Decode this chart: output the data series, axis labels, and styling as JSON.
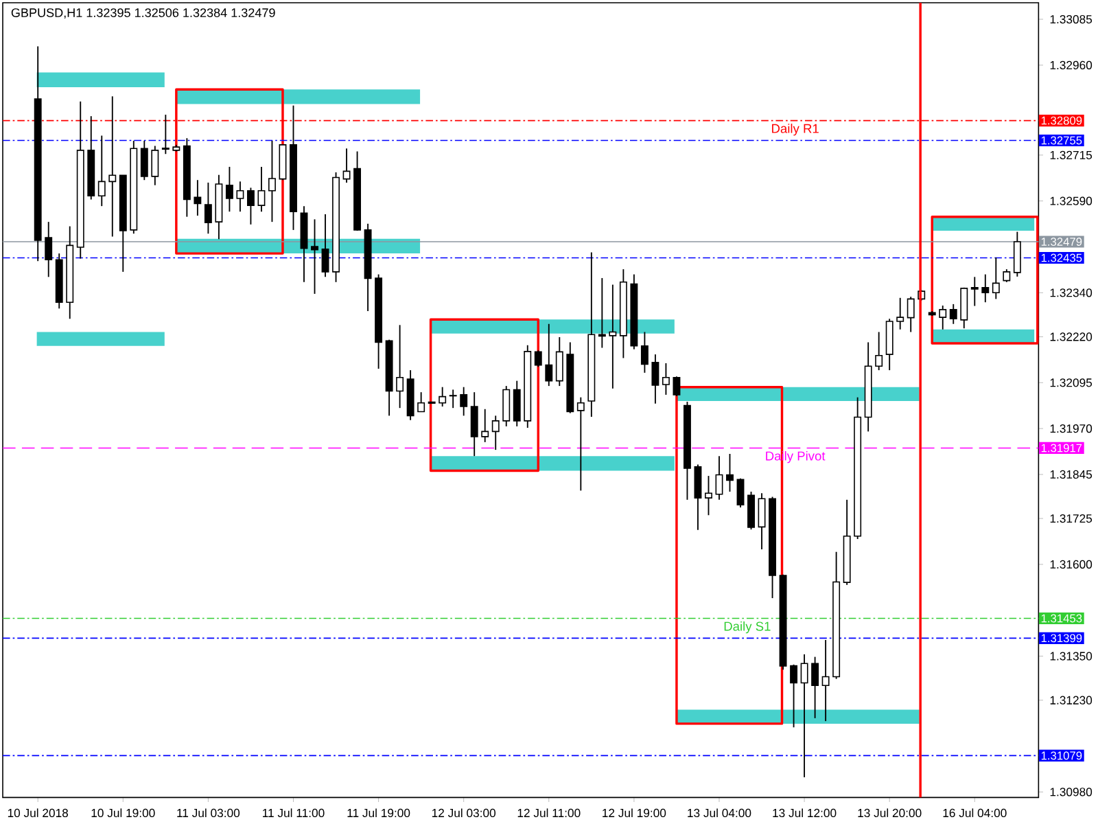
{
  "chart_data": {
    "type": "candlestick",
    "title": "GBPUSD,H1 1.32395 1.32506 1.32384 1.32479",
    "categories": [
      "10 Jul 2018",
      null,
      null,
      null,
      null,
      null,
      null,
      null,
      "10 Jul 19:00",
      null,
      null,
      null,
      null,
      null,
      null,
      null,
      "11 Jul 03:00",
      null,
      null,
      null,
      null,
      null,
      null,
      null,
      "11 Jul 11:00",
      null,
      null,
      null,
      null,
      null,
      null,
      null,
      "11 Jul 19:00",
      null,
      null,
      null,
      null,
      null,
      null,
      null,
      "12 Jul 03:00",
      null,
      null,
      null,
      null,
      null,
      null,
      null,
      "12 Jul 11:00",
      null,
      null,
      null,
      null,
      null,
      null,
      null,
      "12 Jul 19:00",
      null,
      null,
      null,
      null,
      null,
      null,
      null,
      "13 Jul 04:00",
      null,
      null,
      null,
      null,
      null,
      null,
      null,
      "13 Jul 12:00",
      null,
      null,
      null,
      null,
      null,
      null,
      null,
      "13 Jul 20:00",
      null,
      null,
      null,
      null,
      null,
      null,
      null,
      "16 Jul 04:00",
      null,
      null,
      null,
      null
    ],
    "ohlc": [
      [
        1.32868,
        1.33011,
        1.32426,
        1.32483
      ],
      [
        1.3249,
        1.32533,
        1.32383,
        1.3243
      ],
      [
        1.3243,
        1.32447,
        1.32297,
        1.32314
      ],
      [
        1.32314,
        1.32521,
        1.32269,
        1.32469
      ],
      [
        1.32464,
        1.32861,
        1.32433,
        1.32728
      ],
      [
        1.32728,
        1.32821,
        1.32594,
        1.32604
      ],
      [
        1.32604,
        1.32768,
        1.32576,
        1.32643
      ],
      [
        1.32643,
        1.32875,
        1.32493,
        1.3266
      ],
      [
        1.3266,
        1.3266,
        1.32397,
        1.32509
      ],
      [
        1.32511,
        1.32754,
        1.32501,
        1.32733
      ],
      [
        1.32733,
        1.32754,
        1.32647,
        1.32657
      ],
      [
        1.32657,
        1.3274,
        1.32633,
        1.32728
      ],
      [
        1.32731,
        1.32825,
        1.32718,
        1.32734
      ],
      [
        1.32728,
        1.32743,
        1.32725,
        1.32737
      ],
      [
        1.3274,
        1.32761,
        1.32547,
        1.32594
      ],
      [
        1.326,
        1.32647,
        1.3255,
        1.32583
      ],
      [
        1.3258,
        1.3264,
        1.32501,
        1.32531
      ],
      [
        1.32533,
        1.32661,
        1.32486,
        1.32636
      ],
      [
        1.32633,
        1.32683,
        1.32561,
        1.32597
      ],
      [
        1.32597,
        1.32643,
        1.32561,
        1.32618
      ],
      [
        1.32618,
        1.32626,
        1.32526,
        1.32578
      ],
      [
        1.32578,
        1.32683,
        1.32561,
        1.32618
      ],
      [
        1.32618,
        1.32754,
        1.32533,
        1.32651
      ],
      [
        1.3265,
        1.32743,
        1.32647,
        1.32743
      ],
      [
        1.32743,
        1.3285,
        1.32511,
        1.32561
      ],
      [
        1.32557,
        1.32576,
        1.32369,
        1.32461
      ],
      [
        1.32466,
        1.3254,
        1.32337,
        1.32457
      ],
      [
        1.32459,
        1.32554,
        1.32383,
        1.32397
      ],
      [
        1.32397,
        1.32668,
        1.32369,
        1.32654
      ],
      [
        1.3265,
        1.32733,
        1.3264,
        1.32671
      ],
      [
        1.32678,
        1.32725,
        1.32509,
        1.32511
      ],
      [
        1.32511,
        1.32528,
        1.3229,
        1.32379
      ],
      [
        1.3238,
        1.3239,
        1.32133,
        1.32205
      ],
      [
        1.32209,
        1.32212,
        1.32005,
        1.32072
      ],
      [
        1.32072,
        1.32252,
        1.32026,
        1.32109
      ],
      [
        1.32105,
        1.32129,
        1.31993,
        1.32005
      ],
      [
        1.32016,
        1.32069,
        1.32015,
        1.3204
      ],
      [
        1.32039,
        1.32043,
        1.32038,
        1.32042
      ],
      [
        1.3204,
        1.32083,
        1.3203,
        1.32057
      ],
      [
        1.3206,
        1.32076,
        1.32026,
        1.32059
      ],
      [
        1.32062,
        1.32083,
        1.32005,
        1.3203
      ],
      [
        1.3203,
        1.32069,
        1.31895,
        1.31948
      ],
      [
        1.31948,
        1.32023,
        1.31933,
        1.31962
      ],
      [
        1.31962,
        1.32005,
        1.31912,
        1.31991
      ],
      [
        1.31991,
        1.32086,
        1.31976,
        1.32076
      ],
      [
        1.32076,
        1.321,
        1.31976,
        1.31991
      ],
      [
        1.31991,
        1.32197,
        1.31972,
        1.3218
      ],
      [
        1.32179,
        1.32183,
        1.32138,
        1.32143
      ],
      [
        1.32143,
        1.32255,
        1.32086,
        1.321
      ],
      [
        1.321,
        1.32219,
        1.32086,
        1.32179
      ],
      [
        1.32172,
        1.32205,
        1.32012,
        1.32016
      ],
      [
        1.32019,
        1.32055,
        1.31801,
        1.3204
      ],
      [
        1.32045,
        1.3245,
        1.32002,
        1.32226
      ],
      [
        1.32226,
        1.3238,
        1.3219,
        1.32222
      ],
      [
        1.32223,
        1.32362,
        1.32079,
        1.32233
      ],
      [
        1.32223,
        1.32404,
        1.32162,
        1.32369
      ],
      [
        1.32364,
        1.3239,
        1.32186,
        1.32195
      ],
      [
        1.32195,
        1.32233,
        1.32122,
        1.32145
      ],
      [
        1.3215,
        1.32172,
        1.32038,
        1.32088
      ],
      [
        1.3209,
        1.32148,
        1.32062,
        1.32109
      ],
      [
        1.32109,
        1.32112,
        1.32058,
        1.32062
      ],
      [
        1.32033,
        1.32043,
        1.31776,
        1.31862
      ],
      [
        1.31866,
        1.31872,
        1.31694,
        1.31781
      ],
      [
        1.31781,
        1.31841,
        1.31734,
        1.31794
      ],
      [
        1.31791,
        1.31895,
        1.31776,
        1.31844
      ],
      [
        1.31844,
        1.31901,
        1.31798,
        1.31829
      ],
      [
        1.31831,
        1.31834,
        1.31755,
        1.31762
      ],
      [
        1.31788,
        1.31798,
        1.31695,
        1.31701
      ],
      [
        1.31702,
        1.31794,
        1.31641,
        1.31779
      ],
      [
        1.31779,
        1.31784,
        1.31508,
        1.3157
      ],
      [
        1.3157,
        1.31572,
        1.31313,
        1.31323
      ],
      [
        1.31324,
        1.31327,
        1.31156,
        1.31277
      ],
      [
        1.31277,
        1.31355,
        1.3102,
        1.3133
      ],
      [
        1.3133,
        1.31348,
        1.31181,
        1.3127
      ],
      [
        1.3127,
        1.31394,
        1.31173,
        1.31294
      ],
      [
        1.31294,
        1.31634,
        1.31288,
        1.31552
      ],
      [
        1.31551,
        1.31776,
        1.31544,
        1.31677
      ],
      [
        1.31677,
        1.32055,
        1.31669,
        1.32001
      ],
      [
        1.32001,
        1.32205,
        1.31962,
        1.3214
      ],
      [
        1.3214,
        1.32233,
        1.32129,
        1.32169
      ],
      [
        1.32172,
        1.32269,
        1.32129,
        1.32262
      ],
      [
        1.32262,
        1.32326,
        1.3224,
        1.32273
      ],
      [
        1.32272,
        1.32329,
        1.32233,
        1.32323
      ],
      [
        1.32323,
        1.32347,
        1.32319,
        1.32344
      ],
      [
        1.32286,
        1.3229,
        1.32277,
        1.3228
      ],
      [
        1.32273,
        1.32305,
        1.3224,
        1.32294
      ],
      [
        1.32294,
        1.32309,
        1.32255,
        1.32269
      ],
      [
        1.32266,
        1.32354,
        1.32243,
        1.32352
      ],
      [
        1.32354,
        1.32383,
        1.32304,
        1.3235
      ],
      [
        1.32354,
        1.3239,
        1.32314,
        1.3234
      ],
      [
        1.3234,
        1.32436,
        1.32323,
        1.32366
      ],
      [
        1.32373,
        1.32404,
        1.32369,
        1.32397
      ],
      [
        1.32395,
        1.32506,
        1.32384,
        1.32479
      ]
    ],
    "ref_lines": [
      {
        "axis": "y",
        "value": 1.32809,
        "label": "Daily R1",
        "color": "#ff0000",
        "line_style": "dotted"
      },
      {
        "axis": "y",
        "value": 1.32755,
        "color": "#0000ff",
        "line_style": "dotted"
      },
      {
        "axis": "y",
        "value": 1.32479,
        "color": "#8c96a0",
        "line_style": "solid"
      },
      {
        "axis": "y",
        "value": 1.32435,
        "color": "#0000ff",
        "line_style": "dotted"
      },
      {
        "axis": "y",
        "value": 1.31917,
        "label": "Daily Pivot",
        "color": "#ff00ff",
        "line_style": "dashed"
      },
      {
        "axis": "y",
        "value": 1.31453,
        "label": "Daily S1",
        "color": "#32cd32",
        "line_style": "dotted"
      },
      {
        "axis": "y",
        "value": 1.31399,
        "color": "#0000ff",
        "line_style": "dotted"
      },
      {
        "axis": "y",
        "value": 1.31079,
        "color": "#0000ff",
        "line_style": "dotted"
      }
    ],
    "bands": [
      {
        "axis": "y",
        "from": 1.329,
        "to": 1.3294,
        "color": "#48d1cc"
      },
      {
        "axis": "y",
        "from": 1.32195,
        "to": 1.32233,
        "color": "#48d1cc"
      },
      {
        "axis": "y",
        "from": 1.32854,
        "to": 1.32894,
        "color": "#48d1cc"
      },
      {
        "axis": "y",
        "from": 1.32447,
        "to": 1.32487,
        "color": "#48d1cc"
      },
      {
        "axis": "y",
        "from": 1.32229,
        "to": 1.32267,
        "color": "#48d1cc"
      },
      {
        "axis": "y",
        "from": 1.31855,
        "to": 1.31895,
        "color": "#48d1cc"
      },
      {
        "axis": "y",
        "from": 1.32045,
        "to": 1.32083,
        "color": "#48d1cc"
      },
      {
        "axis": "y",
        "from": 1.31166,
        "to": 1.31204,
        "color": "#48d1cc"
      },
      {
        "axis": "y",
        "from": 1.32509,
        "to": 1.32547,
        "color": "#48d1cc"
      },
      {
        "axis": "y",
        "from": 1.32202,
        "to": 1.3224,
        "color": "#48d1cc"
      }
    ],
    "annotations": [
      "1.32809",
      "1.32755",
      "1.32479",
      "1.32435",
      "1.31917",
      "1.31453",
      "1.31399",
      "1.31079"
    ],
    "ylim": [
      1.30965,
      1.3313
    ],
    "yticks": [
      1.33085,
      {
        "value": 1.3296,
        "label": "1.32960"
      },
      1.32715,
      {
        "value": 1.3259,
        "label": "1.32590"
      },
      {
        "value": 1.3234,
        "label": "1.32340"
      },
      {
        "value": 1.3222,
        "label": "1.32220"
      },
      1.32095,
      {
        "value": 1.3197,
        "label": "1.31970"
      },
      1.31845,
      1.31725,
      {
        "value": 1.316,
        "label": "1.31600"
      },
      {
        "value": 1.3135,
        "label": "1.31350"
      },
      {
        "value": 1.3123,
        "label": "1.31230"
      },
      {
        "value": 1.3098,
        "label": "1.30980"
      }
    ]
  }
}
